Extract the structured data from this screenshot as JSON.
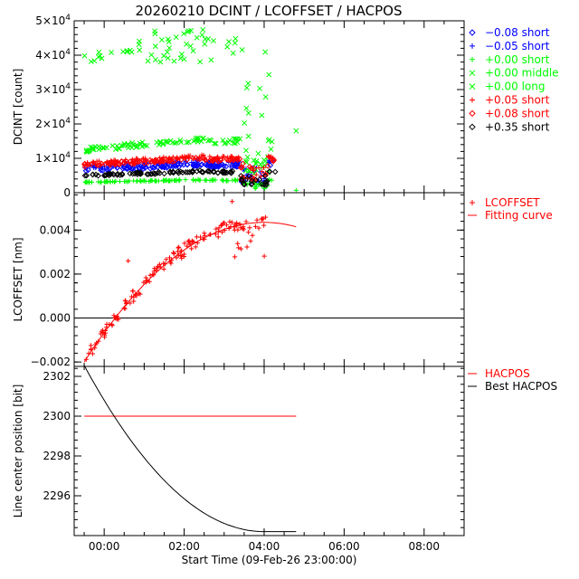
{
  "title": "20260210 DCINT / LCOFFSET / HACPOS",
  "chart_data": [
    {
      "type": "scatter",
      "name": "dcint-panel",
      "ylabel": "DCINT [count]",
      "xlim": [
        -0.75,
        9.0
      ],
      "ylim": [
        0,
        50000
      ],
      "y_ticks": [
        {
          "value": 0,
          "label": "0",
          "exp": ""
        },
        {
          "value": 10000,
          "label": "1×10",
          "exp": "4"
        },
        {
          "value": 20000,
          "label": "2×10",
          "exp": "4"
        },
        {
          "value": 30000,
          "label": "3×10",
          "exp": "4"
        },
        {
          "value": 40000,
          "label": "4×10",
          "exp": "4"
        },
        {
          "value": 50000,
          "label": "5×10",
          "exp": "4"
        }
      ],
      "series": [
        {
          "label": "−0.08 short",
          "color": "#0000ff",
          "marker": "diamond",
          "base": 6500
        },
        {
          "label": "−0.05 short",
          "color": "#0000ff",
          "marker": "plus",
          "base": 7500
        },
        {
          "label": "+0.00 short",
          "color": "#00ff00",
          "marker": "plus",
          "base": 3000
        },
        {
          "label": "+0.00 middle",
          "color": "#00ff00",
          "marker": "cross",
          "base": 12500
        },
        {
          "label": "+0.00 long",
          "color": "#00ff00",
          "marker": "cross",
          "base": 43000
        },
        {
          "label": "+0.05 short",
          "color": "#ff0000",
          "marker": "plus",
          "base": 8500
        },
        {
          "label": "+0.08 short",
          "color": "#ff0000",
          "marker": "diamond",
          "base": 8000
        },
        {
          "label": "+0.35 short",
          "color": "#000000",
          "marker": "diamond",
          "base": 5000
        }
      ]
    },
    {
      "type": "scatter",
      "name": "lcoffset-panel",
      "ylabel": "LCOFFSET [nm]",
      "xlim": [
        -0.75,
        9.0
      ],
      "ylim": [
        -0.0022,
        0.0057
      ],
      "y_ticks": [
        {
          "value": -0.002,
          "label": "−0.002"
        },
        {
          "value": 0.0,
          "label": "0.000"
        },
        {
          "value": 0.002,
          "label": "0.002"
        },
        {
          "value": 0.004,
          "label": "0.004"
        }
      ],
      "zero_line": 0.0,
      "series": [
        {
          "label": "LCOFFSET",
          "color": "#ff0000",
          "marker": "plus"
        },
        {
          "label": "Fitting curve",
          "color": "#ff0000",
          "marker": "line"
        }
      ],
      "fit": {
        "x0": -0.5,
        "x1": 4.8,
        "y0": -0.002,
        "ymax": 0.00435,
        "xpeak": 4.0
      }
    },
    {
      "type": "line",
      "name": "hacpos-panel",
      "ylabel": "Line center position [bit]",
      "xlabel": "Start Time (09-Feb-26 23:00:00)",
      "xlim": [
        -0.75,
        9.0
      ],
      "ylim": [
        2294.0,
        2302.5
      ],
      "y_ticks": [
        {
          "value": 2296,
          "label": "2296"
        },
        {
          "value": 2298,
          "label": "2298"
        },
        {
          "value": 2300,
          "label": "2300"
        },
        {
          "value": 2302,
          "label": "2302"
        }
      ],
      "x_ticks": [
        {
          "value": 0,
          "label": "00:00"
        },
        {
          "value": 2,
          "label": "02:00"
        },
        {
          "value": 4,
          "label": "04:00"
        },
        {
          "value": 6,
          "label": "06:00"
        },
        {
          "value": 8,
          "label": "08:00"
        }
      ],
      "series": [
        {
          "label": "HACPOS",
          "color": "#ff0000",
          "x": [
            -0.5,
            4.8
          ],
          "y": [
            2300.0,
            2300.0
          ]
        },
        {
          "label": "Best HACPOS",
          "color": "#000000",
          "x0": -0.5,
          "x1": 4.8,
          "y0": 2302.55,
          "ymin": 2294.2,
          "xmin": 4.0
        }
      ]
    }
  ]
}
